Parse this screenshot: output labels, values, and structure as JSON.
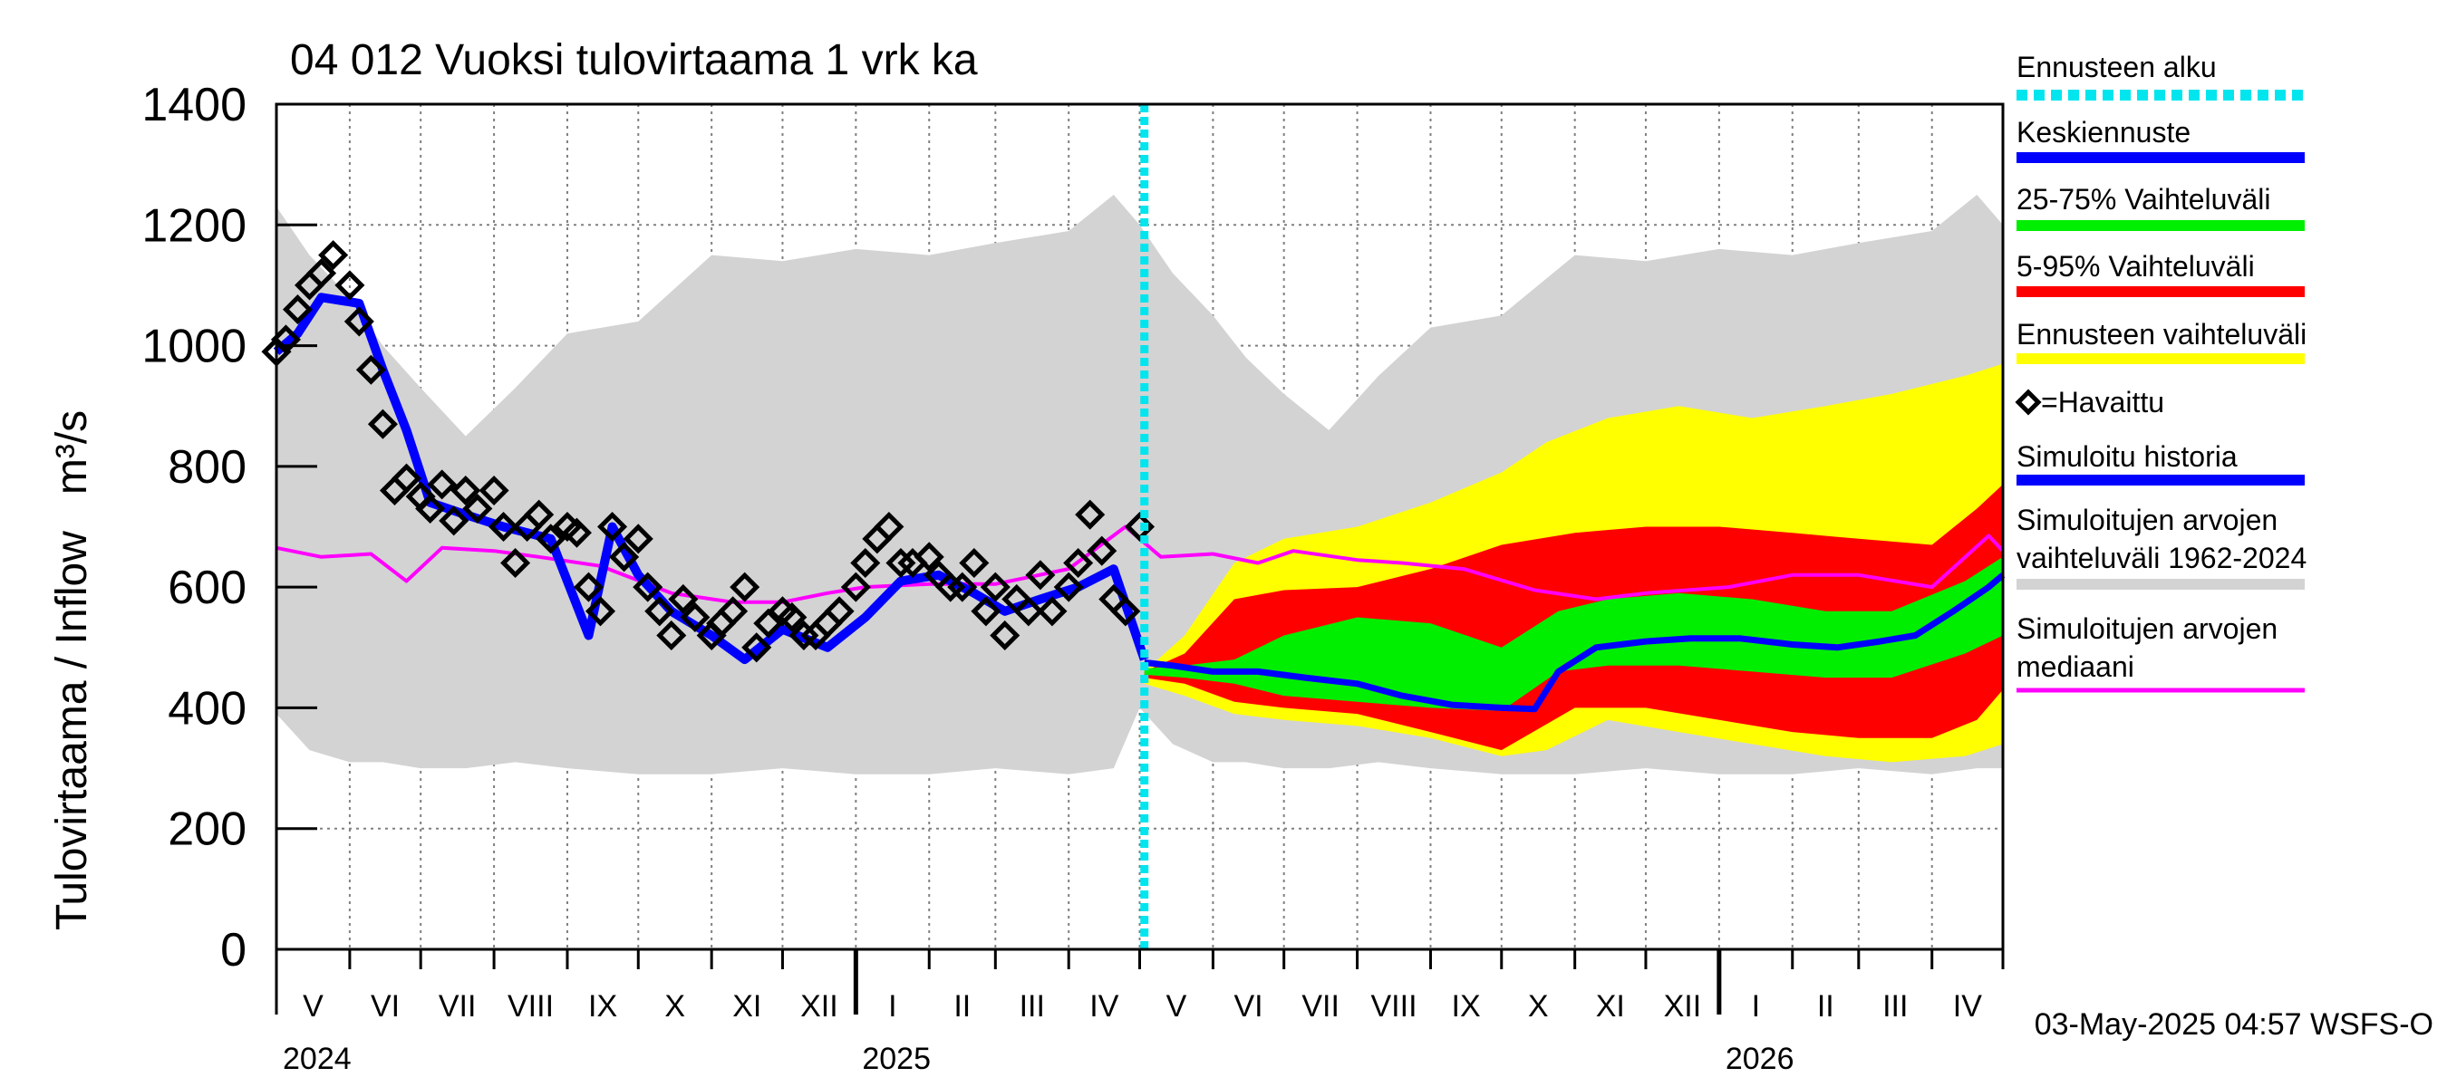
{
  "chart_data": {
    "type": "area",
    "title": "04 012 Vuoksi tulovirtaama 1 vrk ka",
    "ylabel": "Tulovirtaama / Inflow   m³/s",
    "ylim": [
      0,
      1400
    ],
    "yticks": [
      0,
      200,
      400,
      600,
      800,
      1000,
      1200,
      1400
    ],
    "grid": true,
    "legend_position": "right",
    "timestamp": "03-May-2025 04:57 WSFS-O",
    "forecast_start": "2025-05-03",
    "x_months": [
      {
        "label": "V",
        "start": "2024-05-01"
      },
      {
        "label": "VI",
        "start": "2024-06-01"
      },
      {
        "label": "VII",
        "start": "2024-07-01"
      },
      {
        "label": "VIII",
        "start": "2024-08-01"
      },
      {
        "label": "IX",
        "start": "2024-09-01"
      },
      {
        "label": "X",
        "start": "2024-10-01"
      },
      {
        "label": "XI",
        "start": "2024-11-01"
      },
      {
        "label": "XII",
        "start": "2024-12-01"
      },
      {
        "label": "I",
        "start": "2025-01-01"
      },
      {
        "label": "II",
        "start": "2025-02-01"
      },
      {
        "label": "III",
        "start": "2025-03-01"
      },
      {
        "label": "IV",
        "start": "2025-04-01"
      },
      {
        "label": "V",
        "start": "2025-05-01"
      },
      {
        "label": "VI",
        "start": "2025-06-01"
      },
      {
        "label": "VII",
        "start": "2025-07-01"
      },
      {
        "label": "VIII",
        "start": "2025-08-01"
      },
      {
        "label": "IX",
        "start": "2025-09-01"
      },
      {
        "label": "X",
        "start": "2025-10-01"
      },
      {
        "label": "XI",
        "start": "2025-11-01"
      },
      {
        "label": "XII",
        "start": "2025-12-01"
      },
      {
        "label": "I",
        "start": "2026-01-01"
      },
      {
        "label": "II",
        "start": "2026-02-01"
      },
      {
        "label": "III",
        "start": "2026-03-01"
      },
      {
        "label": "IV",
        "start": "2026-04-01"
      }
    ],
    "x_years": [
      {
        "label": "2024",
        "start": "2024-05-01"
      },
      {
        "label": "2025",
        "start": "2025-01-01"
      },
      {
        "label": "2026",
        "start": "2026-01-01"
      }
    ],
    "legend": [
      {
        "key": "forecast_start",
        "label": "Ennusteen alku",
        "color": "#00e5ee",
        "style": "dashed"
      },
      {
        "key": "mean_forecast",
        "label": "Keskiennuste",
        "color": "#0000ff",
        "style": "line"
      },
      {
        "key": "p25_75",
        "label": "25-75% Vaihteluväli",
        "color": "#00ee00",
        "style": "line"
      },
      {
        "key": "p5_95",
        "label": "5-95% Vaihteluväli",
        "color": "#ff0000",
        "style": "line"
      },
      {
        "key": "forecast_range",
        "label": "Ennusteen vaihteluväli",
        "color": "#ffff00",
        "style": "line"
      },
      {
        "key": "observed",
        "label": "=Havaittu",
        "color": "#000000",
        "style": "marker"
      },
      {
        "key": "sim_history",
        "label": "Simuloitu historia",
        "color": "#0000ff",
        "style": "line"
      },
      {
        "key": "sim_range",
        "label": "Simuloitujen arvojen\nvaihteluväli 1962-2024",
        "color": "#d3d3d3",
        "style": "line"
      },
      {
        "key": "sim_median",
        "label": "Simuloitujen arvojen\nmediaani",
        "color": "#ff00ff",
        "style": "line"
      }
    ],
    "series": [
      {
        "key": "sim_range",
        "x": [
          "2024-05-01",
          "2024-05-15",
          "2024-06-01",
          "2024-06-15",
          "2024-07-01",
          "2024-07-20",
          "2024-08-10",
          "2024-09-01",
          "2024-10-01",
          "2024-11-01",
          "2024-12-01",
          "2025-01-01",
          "2025-02-01",
          "2025-03-01",
          "2025-04-01",
          "2025-04-20",
          "2025-05-01",
          "2025-05-15",
          "2025-06-01",
          "2025-06-15",
          "2025-07-01",
          "2025-07-20",
          "2025-08-10",
          "2025-09-01",
          "2025-10-01",
          "2025-11-01",
          "2025-12-01",
          "2026-01-01",
          "2026-02-01",
          "2026-03-01",
          "2026-04-01",
          "2026-04-20",
          "2026-05-01"
        ],
        "upper": [
          1230,
          1150,
          1080,
          1000,
          930,
          850,
          930,
          1020,
          1040,
          1150,
          1140,
          1160,
          1150,
          1170,
          1190,
          1250,
          1200,
          1120,
          1050,
          980,
          920,
          860,
          950,
          1030,
          1050,
          1150,
          1140,
          1160,
          1150,
          1170,
          1190,
          1250,
          1200
        ],
        "lower": [
          390,
          330,
          310,
          310,
          300,
          300,
          310,
          300,
          290,
          290,
          300,
          290,
          290,
          300,
          290,
          300,
          400,
          340,
          310,
          310,
          300,
          300,
          310,
          300,
          290,
          290,
          300,
          290,
          290,
          300,
          290,
          300,
          300
        ]
      },
      {
        "key": "sim_median",
        "x": [
          "2024-05-01",
          "2024-05-20",
          "2024-06-10",
          "2024-06-25",
          "2024-07-10",
          "2024-08-01",
          "2024-08-20",
          "2024-09-15",
          "2024-10-15",
          "2024-11-10",
          "2024-12-01",
          "2024-12-20",
          "2025-01-05",
          "2025-02-01",
          "2025-03-01",
          "2025-04-01",
          "2025-04-25",
          "2025-05-10",
          "2025-06-01",
          "2025-06-20",
          "2025-07-05",
          "2025-08-01",
          "2025-08-20",
          "2025-09-15",
          "2025-10-15",
          "2025-11-10",
          "2025-12-01",
          "2026-01-05",
          "2026-02-01",
          "2026-03-01",
          "2026-04-01",
          "2026-04-25",
          "2026-05-01"
        ],
        "values": [
          665,
          650,
          655,
          610,
          665,
          660,
          650,
          635,
          590,
          575,
          575,
          590,
          600,
          605,
          605,
          630,
          700,
          650,
          655,
          640,
          660,
          645,
          640,
          630,
          595,
          580,
          590,
          600,
          620,
          620,
          600,
          685,
          660
        ]
      },
      {
        "key": "forecast_range",
        "x": [
          "2025-05-03",
          "2025-05-20",
          "2025-06-10",
          "2025-07-01",
          "2025-08-01",
          "2025-09-01",
          "2025-10-01",
          "2025-10-20",
          "2025-11-15",
          "2025-12-15",
          "2026-01-15",
          "2026-02-15",
          "2026-03-15",
          "2026-04-15",
          "2026-05-01"
        ],
        "upper": [
          460,
          520,
          640,
          680,
          700,
          740,
          790,
          840,
          880,
          900,
          880,
          900,
          920,
          950,
          970
        ],
        "lower": [
          440,
          420,
          390,
          380,
          370,
          350,
          320,
          330,
          380,
          360,
          340,
          320,
          310,
          320,
          340
        ]
      },
      {
        "key": "p5_95",
        "x": [
          "2025-05-03",
          "2025-05-20",
          "2025-06-10",
          "2025-07-01",
          "2025-08-01",
          "2025-09-01",
          "2025-10-01",
          "2025-11-01",
          "2025-12-01",
          "2026-01-01",
          "2026-02-01",
          "2026-03-01",
          "2026-04-01",
          "2026-04-20",
          "2026-05-01"
        ],
        "upper": [
          460,
          490,
          580,
          595,
          600,
          630,
          670,
          690,
          700,
          700,
          690,
          680,
          670,
          730,
          770
        ],
        "lower": [
          450,
          440,
          410,
          400,
          390,
          360,
          330,
          400,
          400,
          380,
          360,
          350,
          350,
          380,
          430
        ]
      },
      {
        "key": "p25_75",
        "x": [
          "2025-05-03",
          "2025-05-20",
          "2025-06-10",
          "2025-07-01",
          "2025-08-01",
          "2025-09-01",
          "2025-10-01",
          "2025-10-25",
          "2025-11-15",
          "2025-12-15",
          "2026-01-15",
          "2026-02-15",
          "2026-03-15",
          "2026-04-15",
          "2026-05-01"
        ],
        "upper": [
          465,
          470,
          480,
          520,
          550,
          540,
          500,
          560,
          580,
          590,
          580,
          560,
          560,
          610,
          650
        ],
        "lower": [
          455,
          450,
          440,
          420,
          410,
          400,
          395,
          460,
          470,
          470,
          460,
          450,
          450,
          490,
          520
        ]
      },
      {
        "key": "mean_forecast",
        "x": [
          "2025-05-03",
          "2025-05-15",
          "2025-06-01",
          "2025-06-20",
          "2025-07-10",
          "2025-08-01",
          "2025-08-20",
          "2025-09-10",
          "2025-10-01",
          "2025-10-15",
          "2025-10-25",
          "2025-11-10",
          "2025-12-01",
          "2025-12-20",
          "2026-01-10",
          "2026-02-01",
          "2026-02-20",
          "2026-03-10",
          "2026-03-25",
          "2026-04-10",
          "2026-04-25",
          "2026-05-01"
        ],
        "values": [
          475,
          470,
          460,
          460,
          450,
          440,
          420,
          405,
          400,
          398,
          460,
          500,
          510,
          515,
          515,
          505,
          500,
          510,
          520,
          560,
          600,
          620
        ]
      },
      {
        "key": "sim_history",
        "x": [
          "2024-05-01",
          "2024-05-10",
          "2024-05-20",
          "2024-06-05",
          "2024-06-15",
          "2024-06-25",
          "2024-07-05",
          "2024-07-20",
          "2024-08-05",
          "2024-08-25",
          "2024-09-10",
          "2024-09-20",
          "2024-10-01",
          "2024-10-15",
          "2024-11-01",
          "2024-11-15",
          "2024-12-01",
          "2024-12-20",
          "2025-01-05",
          "2025-01-20",
          "2025-02-05",
          "2025-02-20",
          "2025-03-05",
          "2025-03-20",
          "2025-04-05",
          "2025-04-20",
          "2025-05-03"
        ],
        "values": [
          990,
          1020,
          1080,
          1070,
          960,
          860,
          740,
          720,
          700,
          680,
          520,
          700,
          620,
          560,
          520,
          480,
          530,
          500,
          550,
          610,
          620,
          590,
          560,
          580,
          600,
          630,
          480
        ]
      },
      {
        "key": "observed",
        "x": [
          "2024-05-01",
          "2024-05-05",
          "2024-05-10",
          "2024-05-15",
          "2024-05-20",
          "2024-05-25",
          "2024-06-01",
          "2024-06-05",
          "2024-06-10",
          "2024-06-15",
          "2024-06-20",
          "2024-06-25",
          "2024-07-01",
          "2024-07-05",
          "2024-07-10",
          "2024-07-15",
          "2024-07-20",
          "2024-07-25",
          "2024-08-01",
          "2024-08-05",
          "2024-08-10",
          "2024-08-15",
          "2024-08-20",
          "2024-08-25",
          "2024-09-01",
          "2024-09-05",
          "2024-09-10",
          "2024-09-15",
          "2024-09-20",
          "2024-09-25",
          "2024-10-01",
          "2024-10-05",
          "2024-10-10",
          "2024-10-15",
          "2024-10-20",
          "2024-10-25",
          "2024-11-01",
          "2024-11-05",
          "2024-11-10",
          "2024-11-15",
          "2024-11-20",
          "2024-11-25",
          "2024-12-01",
          "2024-12-05",
          "2024-12-10",
          "2024-12-15",
          "2024-12-20",
          "2024-12-25",
          "2025-01-01",
          "2025-01-05",
          "2025-01-10",
          "2025-01-15",
          "2025-01-20",
          "2025-01-25",
          "2025-02-01",
          "2025-02-05",
          "2025-02-10",
          "2025-02-15",
          "2025-02-20",
          "2025-02-25",
          "2025-03-01",
          "2025-03-05",
          "2025-03-10",
          "2025-03-15",
          "2025-03-20",
          "2025-03-25",
          "2025-04-01",
          "2025-04-05",
          "2025-04-10",
          "2025-04-15",
          "2025-04-20",
          "2025-04-25",
          "2025-05-01"
        ],
        "values": [
          990,
          1010,
          1060,
          1100,
          1120,
          1150,
          1100,
          1040,
          960,
          870,
          760,
          780,
          750,
          730,
          770,
          710,
          760,
          730,
          760,
          700,
          640,
          700,
          720,
          680,
          700,
          690,
          600,
          560,
          700,
          650,
          680,
          600,
          560,
          520,
          580,
          550,
          520,
          540,
          560,
          600,
          500,
          540,
          560,
          550,
          520,
          520,
          540,
          560,
          600,
          640,
          680,
          700,
          640,
          640,
          650,
          620,
          600,
          600,
          640,
          560,
          600,
          520,
          580,
          560,
          620,
          560,
          600,
          640,
          720,
          660,
          580,
          560,
          700
        ]
      }
    ]
  }
}
